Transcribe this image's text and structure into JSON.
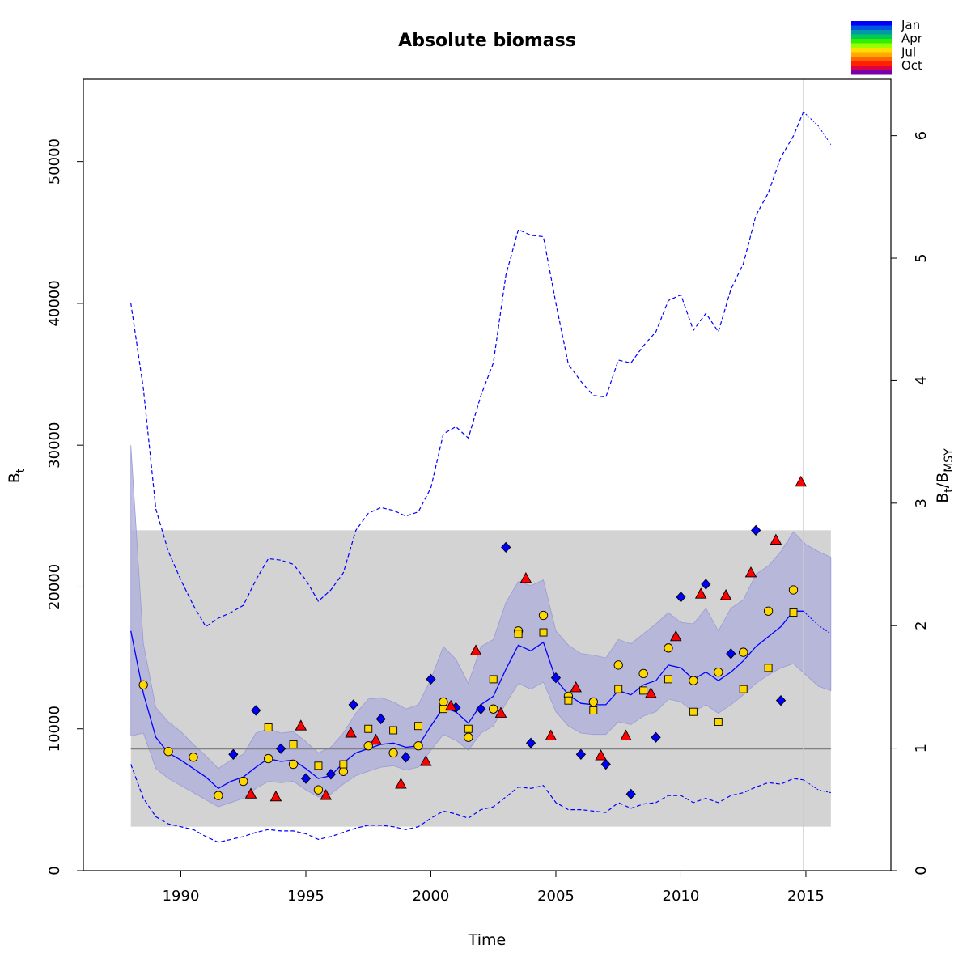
{
  "chart_data": {
    "type": "scatter",
    "title": "Absolute biomass",
    "xlabel": "Time",
    "ylabel": "B",
    "ylabel_sub": "t",
    "y2label_main": "B",
    "y2label_sub1": "t",
    "y2label_slash": "/B",
    "y2label_sub2": "MSY",
    "xlim": [
      1986.1,
      2018.4
    ],
    "ylim": [
      0,
      55800
    ],
    "y2lim": [
      0,
      6.46
    ],
    "xticks": [
      1990,
      1995,
      2000,
      2005,
      2010,
      2015
    ],
    "xtick_labels": [
      "1990",
      "1995",
      "2000",
      "2005",
      "2010",
      "2015"
    ],
    "yticks": [
      0,
      10000,
      20000,
      30000,
      40000,
      50000
    ],
    "ytick_labels": [
      "0",
      "10000",
      "20000",
      "30000",
      "40000",
      "50000"
    ],
    "y2ticks": [
      0,
      1,
      2,
      3,
      4,
      5,
      6
    ],
    "y2tick_labels": [
      "0",
      "1",
      "2",
      "3",
      "4",
      "5",
      "6"
    ],
    "grey_band": {
      "x": [
        1988,
        2016
      ],
      "y": [
        3100,
        24000
      ]
    },
    "bmsy_line": 8600,
    "last_obs_line": 2014.9,
    "legend": {
      "position": "top-right",
      "labels": [
        "Jan",
        "Apr",
        "Jul",
        "Oct"
      ],
      "colors": [
        "#0000ff",
        "#0055e0",
        "#0099aa",
        "#00cc55",
        "#33ee00",
        "#99ff00",
        "#ffdd00",
        "#ffaa00",
        "#ff6600",
        "#ff2200",
        "#dd0044",
        "#7700aa"
      ]
    },
    "colors": {
      "q1": "#0000ff",
      "q2": "#ffd700",
      "q4": "#ff0000",
      "line": "#0000ff",
      "ci_fill": "#b0b0dc",
      "band": "#d3d3d3",
      "bmsy": "#808080"
    },
    "median": {
      "x": [
        1988.0,
        1988.5,
        1989.0,
        1989.5,
        1990.0,
        1990.5,
        1991.0,
        1991.5,
        1992.0,
        1992.5,
        1993.0,
        1993.5,
        1994.0,
        1994.5,
        1995.0,
        1995.5,
        1996.0,
        1996.5,
        1997.0,
        1997.5,
        1998.0,
        1998.5,
        1999.0,
        1999.5,
        2000.0,
        2000.5,
        2001.0,
        2001.5,
        2002.0,
        2002.5,
        2003.0,
        2003.5,
        2004.0,
        2004.5,
        2005.0,
        2005.5,
        2006.0,
        2006.5,
        2007.0,
        2007.5,
        2008.0,
        2008.5,
        2009.0,
        2009.5,
        2010.0,
        2010.5,
        2011.0,
        2011.5,
        2012.0,
        2012.5,
        2013.0,
        2013.5,
        2014.0,
        2014.5,
        2014.9
      ],
      "y": [
        16900,
        12500,
        9400,
        8300,
        7800,
        7200,
        6600,
        5800,
        6300,
        6600,
        7300,
        7900,
        7700,
        7800,
        7200,
        6500,
        6700,
        7600,
        8300,
        8600,
        8900,
        9000,
        8700,
        8800,
        10200,
        11500,
        11200,
        10400,
        11700,
        12300,
        14200,
        15900,
        15500,
        16100,
        13500,
        12400,
        11800,
        11700,
        11700,
        12700,
        12400,
        13100,
        13400,
        14500,
        14300,
        13500,
        14000,
        13400,
        14000,
        14800,
        15800,
        16500,
        17200,
        18300,
        18300
      ]
    },
    "median_forecast": {
      "x": [
        2014.9,
        2015.5,
        2016.0
      ],
      "y": [
        18300,
        17300,
        16700
      ]
    },
    "ci95": {
      "x": [
        1988.0,
        1988.5,
        1989.0,
        1989.5,
        1990.0,
        1990.5,
        1991.0,
        1991.5,
        1992.0,
        1992.5,
        1993.0,
        1993.5,
        1994.0,
        1994.5,
        1995.0,
        1995.5,
        1996.0,
        1996.5,
        1997.0,
        1997.5,
        1998.0,
        1998.5,
        1999.0,
        1999.5,
        2000.0,
        2000.5,
        2001.0,
        2001.5,
        2002.0,
        2002.5,
        2003.0,
        2003.5,
        2004.0,
        2004.5,
        2005.0,
        2005.5,
        2006.0,
        2006.5,
        2007.0,
        2007.5,
        2008.0,
        2008.5,
        2009.0,
        2009.5,
        2010.0,
        2010.5,
        2011.0,
        2011.5,
        2012.0,
        2012.5,
        2013.0,
        2013.5,
        2014.0,
        2014.5,
        2015.0,
        2015.5,
        2016.0
      ],
      "lower": [
        9500,
        9700,
        7200,
        6500,
        6000,
        5500,
        5000,
        4500,
        4800,
        5100,
        5800,
        6300,
        6200,
        6300,
        5700,
        5200,
        5400,
        6100,
        6700,
        7000,
        7300,
        7400,
        7100,
        7300,
        8500,
        9600,
        9200,
        8500,
        9700,
        10200,
        11800,
        13200,
        12800,
        13300,
        11200,
        10200,
        9700,
        9600,
        9600,
        10500,
        10300,
        10900,
        11200,
        12100,
        11900,
        11200,
        11700,
        11100,
        11700,
        12400,
        13200,
        13800,
        14300,
        14600,
        13800,
        13000,
        12700
      ],
      "upper": [
        30000,
        16000,
        11500,
        10500,
        9800,
        8900,
        8100,
        7200,
        7800,
        8200,
        9700,
        10000,
        9700,
        9800,
        9100,
        8300,
        8700,
        9700,
        11100,
        12100,
        12200,
        11900,
        11400,
        11700,
        13500,
        15800,
        14900,
        13200,
        15800,
        16300,
        18900,
        20400,
        20100,
        20500,
        16900,
        15900,
        15300,
        15200,
        15000,
        16300,
        16000,
        16700,
        17400,
        18200,
        17500,
        17400,
        18500,
        16900,
        18500,
        19100,
        20900,
        21500,
        22500,
        23900,
        23000,
        22500,
        22100
      ]
    },
    "ci_outer_upper": {
      "x": [
        1988.0,
        1988.5,
        1989.0,
        1989.5,
        1990.0,
        1990.5,
        1991.0,
        1991.5,
        1992.0,
        1992.5,
        1993.0,
        1993.5,
        1994.0,
        1994.5,
        1995.0,
        1995.5,
        1996.0,
        1996.5,
        1997.0,
        1997.5,
        1998.0,
        1998.5,
        1999.0,
        1999.5,
        2000.0,
        2000.5,
        2001.0,
        2001.5,
        2002.0,
        2002.5,
        2003.0,
        2003.5,
        2004.0,
        2004.5,
        2005.0,
        2005.5,
        2006.0,
        2006.5,
        2007.0,
        2007.5,
        2008.0,
        2008.5,
        2009.0,
        2009.5,
        2010.0,
        2010.5,
        2011.0,
        2011.5,
        2012.0,
        2012.5,
        2013.0,
        2013.5,
        2014.0,
        2014.5,
        2014.9
      ],
      "y": [
        40000,
        34000,
        25500,
        22500,
        20500,
        18700,
        17200,
        17800,
        18200,
        18700,
        20500,
        22000,
        21900,
        21600,
        20500,
        19000,
        19800,
        21000,
        24000,
        25200,
        25600,
        25400,
        25000,
        25300,
        27000,
        30800,
        31300,
        30500,
        33500,
        35800,
        42000,
        45200,
        44800,
        44700,
        40000,
        35700,
        34500,
        33500,
        33400,
        36000,
        35800,
        37000,
        38000,
        40200,
        40600,
        38100,
        39300,
        38000,
        41000,
        42800,
        46200,
        47800,
        50300,
        51800,
        53500
      ]
    },
    "ci_outer_upper_forecast": {
      "x": [
        2014.9,
        2015.5,
        2016.0
      ],
      "y": [
        53500,
        52500,
        51200
      ]
    },
    "ci_outer_lower": {
      "x": [
        1988.0,
        1988.5,
        1989.0,
        1989.5,
        1990.0,
        1990.5,
        1991.0,
        1991.5,
        1992.0,
        1992.5,
        1993.0,
        1993.5,
        1994.0,
        1994.5,
        1995.0,
        1995.5,
        1996.0,
        1996.5,
        1997.0,
        1997.5,
        1998.0,
        1998.5,
        1999.0,
        1999.5,
        2000.0,
        2000.5,
        2001.0,
        2001.5,
        2002.0,
        2002.5,
        2003.0,
        2003.5,
        2004.0,
        2004.5,
        2005.0,
        2005.5,
        2006.0,
        2006.5,
        2007.0,
        2007.5,
        2008.0,
        2008.5,
        2009.0,
        2009.5,
        2010.0,
        2010.5,
        2011.0,
        2011.5,
        2012.0,
        2012.5,
        2013.0,
        2013.5,
        2014.0,
        2014.5,
        2014.9
      ],
      "y": [
        7500,
        5100,
        3800,
        3300,
        3100,
        2900,
        2400,
        2000,
        2200,
        2400,
        2700,
        2900,
        2800,
        2800,
        2600,
        2200,
        2400,
        2700,
        3000,
        3200,
        3200,
        3100,
        2900,
        3100,
        3700,
        4200,
        4000,
        3700,
        4300,
        4500,
        5200,
        5900,
        5800,
        6000,
        4800,
        4300,
        4300,
        4200,
        4100,
        4800,
        4400,
        4700,
        4800,
        5300,
        5300,
        4800,
        5100,
        4800,
        5300,
        5500,
        5900,
        6200,
        6100,
        6500,
        6400
      ]
    },
    "ci_outer_lower_forecast": {
      "x": [
        2014.9,
        2015.5,
        2016.0
      ],
      "y": [
        6400,
        5700,
        5500
      ]
    },
    "series": [
      {
        "name": "",
        "shape": "diamond",
        "x": [
          1992.1,
          1993.0,
          1994.0,
          1995.0,
          1996.0,
          1996.9,
          1998.0,
          1999.0,
          2000.0,
          2001.0,
          2002.0,
          2003.0,
          2004.0,
          2005.0,
          2006.0,
          2007.0,
          2008.0,
          2009.0,
          2010.0,
          2011.0,
          2012.0,
          2013.0,
          2014.0
        ],
        "y": [
          8200,
          11300,
          8600,
          6500,
          6800,
          11700,
          10700,
          8000,
          13500,
          11500,
          11400,
          22800,
          9000,
          13600,
          8200,
          7500,
          5400,
          9400,
          19300,
          20200,
          15300,
          24000,
          12000
        ]
      },
      {
        "name": "",
        "shape": "circle",
        "x": [
          1988.5,
          1989.5,
          1990.5,
          1991.5,
          1992.5,
          1993.5,
          1994.5,
          1995.5,
          1996.5,
          1997.5,
          1998.5,
          1999.5,
          2000.5,
          2001.5,
          2002.5,
          2003.5,
          2004.5,
          2005.5,
          2006.5,
          2007.5,
          2008.5,
          2009.5,
          2010.5,
          2011.5,
          2012.5,
          2013.5,
          2014.5
        ],
        "y": [
          13100,
          8400,
          8000,
          5300,
          6300,
          7900,
          7500,
          5700,
          7000,
          8800,
          8300,
          8800,
          11900,
          9400,
          11400,
          16900,
          18000,
          12300,
          11900,
          14500,
          13900,
          15700,
          13400,
          14000,
          15400,
          18300,
          19800
        ]
      },
      {
        "name": "",
        "shape": "square",
        "x": [
          1993.5,
          1994.5,
          1995.5,
          1996.5,
          1997.5,
          1998.5,
          1999.5,
          2000.5,
          2001.5,
          2002.5,
          2003.5,
          2004.5,
          2005.5,
          2006.5,
          2007.5,
          2008.5,
          2009.5,
          2010.5,
          2011.5,
          2012.5,
          2013.5,
          2014.5
        ],
        "y": [
          10100,
          8900,
          7400,
          7500,
          10000,
          9900,
          10200,
          11400,
          10000,
          13500,
          16700,
          16800,
          12000,
          11300,
          12800,
          12700,
          13500,
          11200,
          10500,
          12800,
          14300,
          18200
        ]
      },
      {
        "name": "",
        "shape": "triangle",
        "x": [
          1992.8,
          1993.8,
          1994.8,
          1995.8,
          1996.8,
          1997.8,
          1998.8,
          1999.8,
          2000.8,
          2001.8,
          2002.8,
          2003.8,
          2004.8,
          2005.8,
          2006.8,
          2007.8,
          2008.8,
          2009.8,
          2010.8,
          2011.8,
          2012.8,
          2013.8,
          2014.8
        ],
        "y": [
          5400,
          5200,
          10200,
          5300,
          9700,
          9200,
          6100,
          7700,
          11600,
          15500,
          11100,
          20600,
          9500,
          12900,
          8100,
          9500,
          12500,
          16500,
          19500,
          19400,
          21000,
          23300,
          27400
        ]
      }
    ]
  }
}
